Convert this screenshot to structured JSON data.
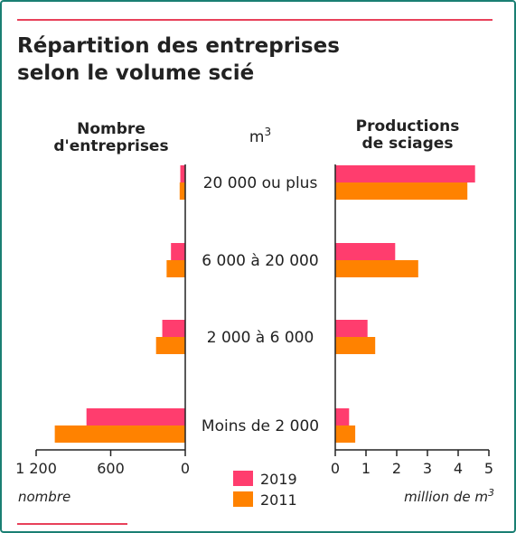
{
  "title": {
    "line1": "Répartition des entreprises",
    "line2": "selon le volume scié"
  },
  "colors": {
    "s2019": "#ff3d6e",
    "s2011": "#ff8200",
    "accent": "#e8415a",
    "frame": "#1a7f73"
  },
  "chart_data": [
    {
      "type": "bar",
      "orientation": "horizontal",
      "direction": "right-to-left",
      "title": "",
      "header": {
        "line1": "Nombre",
        "line2": "d'entreprises"
      },
      "xlabel": "nombre",
      "categories": [
        "20 000 ou plus",
        "6 000 à 20 000",
        "2 000 à 6 000",
        "Moins de 2 000"
      ],
      "series": [
        {
          "name": "2019",
          "values": [
            40,
            115,
            185,
            795
          ]
        },
        {
          "name": "2011",
          "values": [
            45,
            150,
            235,
            1050
          ]
        }
      ],
      "xlim": [
        0,
        1200
      ],
      "ticks": [
        {
          "value": 1200,
          "label": "1 200"
        },
        {
          "value": 600,
          "label": "600"
        },
        {
          "value": 0,
          "label": "0"
        }
      ]
    },
    {
      "type": "bar",
      "orientation": "horizontal",
      "direction": "left-to-right",
      "title": "",
      "header": {
        "line1": "Productions",
        "line2": "de sciages"
      },
      "xlabel_main": "million de m",
      "xlabel_sup": "3",
      "categories": [
        "20 000 ou plus",
        "6 000 à 20 000",
        "2 000 à 6 000",
        "Moins de 2 000"
      ],
      "series": [
        {
          "name": "2019",
          "values": [
            4.55,
            1.95,
            1.05,
            0.45
          ]
        },
        {
          "name": "2011",
          "values": [
            4.3,
            2.7,
            1.3,
            0.65
          ]
        }
      ],
      "xlim": [
        0,
        5
      ],
      "ticks": [
        {
          "value": 0,
          "label": "0"
        },
        {
          "value": 1,
          "label": "1"
        },
        {
          "value": 2,
          "label": "2"
        },
        {
          "value": 3,
          "label": "3"
        },
        {
          "value": 4,
          "label": "4"
        },
        {
          "value": 5,
          "label": "5"
        }
      ]
    }
  ],
  "center_unit": {
    "main": "m",
    "sup": "3"
  },
  "legend": [
    {
      "label": "2019",
      "color": "#ff3d6e"
    },
    {
      "label": "2011",
      "color": "#ff8200"
    }
  ]
}
